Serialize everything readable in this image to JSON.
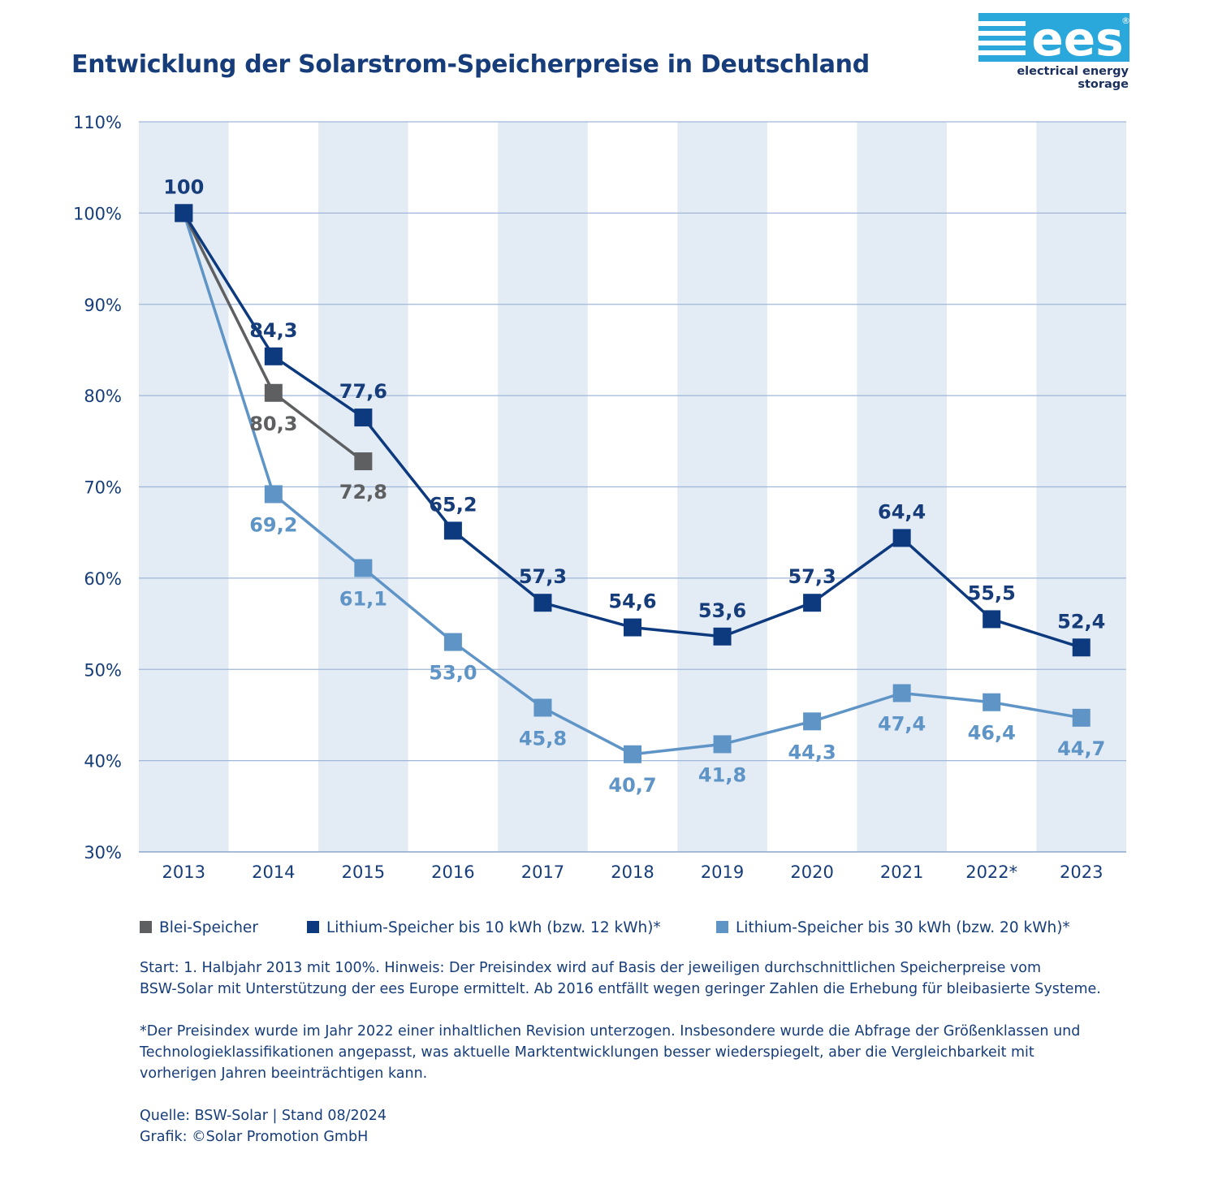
{
  "chart_data": {
    "type": "line",
    "title": "Entwicklung der Solarstrom-Speicherpreise in Deutschland",
    "categories": [
      "2013",
      "2014",
      "2015",
      "2016",
      "2017",
      "2018",
      "2019",
      "2020",
      "2021",
      "2022*",
      "2023"
    ],
    "ylim": [
      30,
      110
    ],
    "yticks": [
      "30%",
      "40%",
      "50%",
      "60%",
      "70%",
      "80%",
      "90%",
      "100%",
      "110%"
    ],
    "series": [
      {
        "name": "Lithium-Speicher bis 30 kWh (bzw. 20 kWh)*",
        "color": "#5f94c7",
        "values": [
          100,
          69.2,
          61.1,
          53.0,
          45.8,
          40.7,
          41.8,
          44.3,
          47.4,
          46.4,
          44.7
        ],
        "labels": [
          "",
          "69,2",
          "61,1",
          "53,0",
          "45,8",
          "40,7",
          "41,8",
          "44,3",
          "47,4",
          "46,4",
          "44,7"
        ]
      },
      {
        "name": "Blei-Speicher",
        "color": "#5e5f61",
        "values": [
          100,
          80.3,
          72.8,
          null,
          null,
          null,
          null,
          null,
          null,
          null,
          null
        ],
        "labels": [
          "",
          "80,3",
          "72,8",
          "",
          "",
          "",
          "",
          "",
          "",
          "",
          ""
        ]
      },
      {
        "name": "Lithium-Speicher bis 10 kWh (bzw. 12 kWh)*",
        "color": "#0d3a7e",
        "values": [
          100,
          84.3,
          77.6,
          65.2,
          57.3,
          54.6,
          53.6,
          57.3,
          64.4,
          55.5,
          52.4
        ],
        "labels": [
          "100",
          "84,3",
          "77,6",
          "65,2",
          "57,3",
          "54,6",
          "53,6",
          "57,3",
          "64,4",
          "55,5",
          "52,4"
        ]
      }
    ],
    "legend_order": [
      "Blei-Speicher",
      "Lithium-Speicher bis 10 kWh (bzw. 12 kWh)*",
      "Lithium-Speicher bis 30 kWh (bzw. 20 kWh)*"
    ],
    "band_color": "#e3ebf5",
    "grid": true
  },
  "logo": {
    "text": "ees",
    "trademark": "®",
    "caption": "electrical energy storage",
    "color": "#2aa8dc"
  },
  "notes": {
    "line1": "Start: 1. Halbjahr 2013 mit 100%. Hinweis: Der Preisindex wird auf Basis der jeweiligen durchschnittlichen Speicherpreise vom",
    "line2": "BSW-Solar mit Unterstützung der ees Europe ermittelt. Ab 2016 entfällt wegen geringer Zahlen die Erhebung für bleibasierte Systeme.",
    "line3": "*Der Preisindex wurde im Jahr 2022 einer inhaltlichen Revision unterzogen. Insbesondere wurde die Abfrage der Größenklassen und",
    "line4": "Technologieklassifikationen angepasst, was aktuelle Marktentwicklungen besser wiederspiegelt, aber die Vergleichbarkeit mit",
    "line5": "vorherigen Jahren beeinträchtigen kann.",
    "source": "Quelle: BSW-Solar | Stand 08/2024",
    "credit": "Grafik: ©Solar Promotion GmbH"
  }
}
